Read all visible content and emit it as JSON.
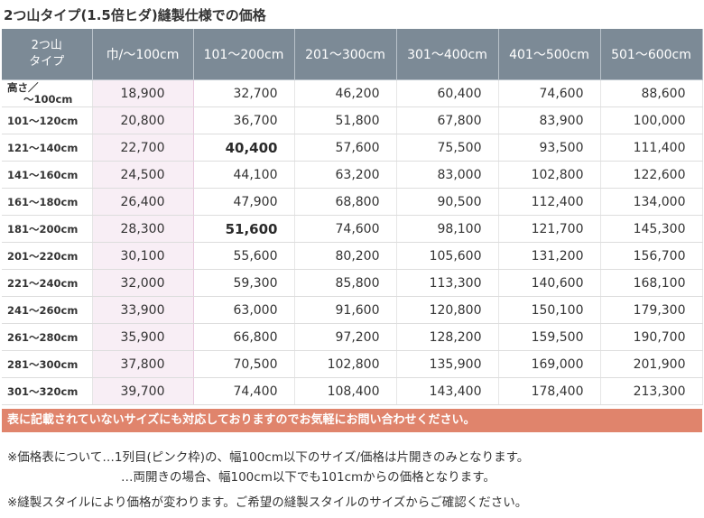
{
  "title": "2つ山タイプ(1.5倍ヒダ)縫製仕様での価格",
  "table": {
    "corner_line1": "2つ山",
    "corner_line2": "タイプ",
    "columns": [
      "巾/〜100cm",
      "101〜200cm",
      "201〜300cm",
      "301〜400cm",
      "401〜500cm",
      "501〜600cm"
    ],
    "rows": [
      {
        "label": "高さ／",
        "label2": "〜100cm",
        "values": [
          "18,900",
          "32,700",
          "46,200",
          "60,400",
          "74,600",
          "88,600"
        ]
      },
      {
        "label": "101〜120cm",
        "values": [
          "20,800",
          "36,700",
          "51,800",
          "67,800",
          "83,900",
          "100,000"
        ]
      },
      {
        "label": "121〜140cm",
        "values": [
          "22,700",
          "40,400",
          "57,600",
          "75,500",
          "93,500",
          "111,400"
        ]
      },
      {
        "label": "141〜160cm",
        "values": [
          "24,500",
          "44,100",
          "63,200",
          "83,000",
          "102,800",
          "122,600"
        ]
      },
      {
        "label": "161〜180cm",
        "values": [
          "26,400",
          "47,900",
          "68,800",
          "90,500",
          "112,400",
          "134,000"
        ]
      },
      {
        "label": "181〜200cm",
        "values": [
          "28,300",
          "51,600",
          "74,600",
          "98,100",
          "121,700",
          "145,300"
        ]
      },
      {
        "label": "201〜220cm",
        "values": [
          "30,100",
          "55,600",
          "80,200",
          "105,600",
          "131,200",
          "156,700"
        ]
      },
      {
        "label": "221〜240cm",
        "values": [
          "32,000",
          "59,300",
          "85,800",
          "113,300",
          "140,600",
          "168,100"
        ]
      },
      {
        "label": "241〜260cm",
        "values": [
          "33,900",
          "63,000",
          "91,600",
          "120,800",
          "150,100",
          "179,300"
        ]
      },
      {
        "label": "261〜280cm",
        "values": [
          "35,900",
          "66,800",
          "97,200",
          "128,200",
          "159,500",
          "190,700"
        ]
      },
      {
        "label": "281〜300cm",
        "values": [
          "37,800",
          "70,500",
          "102,800",
          "135,900",
          "169,000",
          "201,900"
        ]
      },
      {
        "label": "301〜320cm",
        "values": [
          "39,700",
          "74,400",
          "108,400",
          "143,400",
          "178,400",
          "213,300"
        ]
      }
    ]
  },
  "banner": "表に記載されていないサイズにも対応しておりますのでお気軽にお問い合わせください。",
  "notes": {
    "note1": "※価格表について…1列目(ピンク枠)の、幅100cm以下のサイズ/価格は片開きのみとなります。",
    "note2": "…両開きの場合、幅100cm以下でも101cmからの価格となります。",
    "note3": "※縫製スタイルにより価格が変わります。ご希望の縫製スタイルのサイズからご確認ください。"
  },
  "colors": {
    "header_bg": "#7c8a96",
    "pink_column": "#f8eef5",
    "banner_bg": "#e0846c"
  }
}
